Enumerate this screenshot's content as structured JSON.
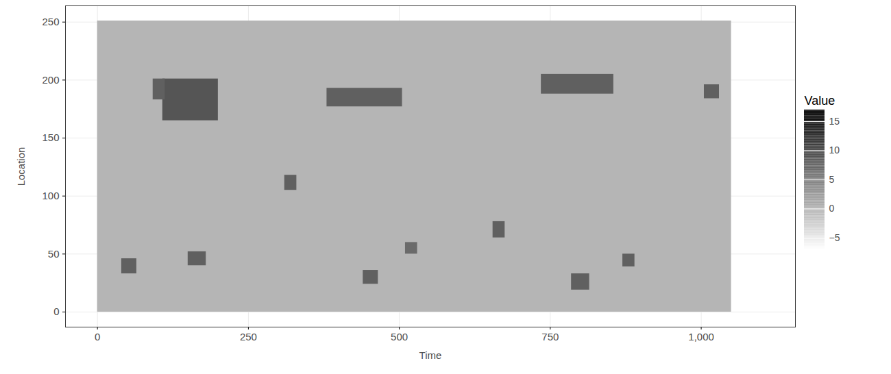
{
  "chart_data": {
    "type": "heatmap",
    "x_label": "Time",
    "y_label": "Location",
    "xlim": [
      -53,
      1156
    ],
    "ylim": [
      -13,
      264
    ],
    "xticks": [
      0,
      250,
      500,
      750,
      1000
    ],
    "yticks": [
      0,
      50,
      100,
      150,
      200,
      250
    ],
    "grid": true,
    "legend": "right",
    "background": {
      "x": [
        0,
        1050
      ],
      "y": [
        0,
        251
      ],
      "value": 0
    },
    "cells": [
      {
        "x1": 108,
        "x2": 200,
        "y1": 165,
        "y2": 201,
        "value": 9
      },
      {
        "x1": 92,
        "x2": 112,
        "y1": 183,
        "y2": 201,
        "value": 8
      },
      {
        "x1": 380,
        "x2": 505,
        "y1": 177,
        "y2": 193,
        "value": 8
      },
      {
        "x1": 735,
        "x2": 855,
        "y1": 188,
        "y2": 205,
        "value": 8
      },
      {
        "x1": 1005,
        "x2": 1030,
        "y1": 184,
        "y2": 196,
        "value": 8
      },
      {
        "x1": 310,
        "x2": 330,
        "y1": 105,
        "y2": 118,
        "value": 8
      },
      {
        "x1": 40,
        "x2": 65,
        "y1": 33,
        "y2": 46,
        "value": 8
      },
      {
        "x1": 150,
        "x2": 180,
        "y1": 40,
        "y2": 52,
        "value": 8
      },
      {
        "x1": 440,
        "x2": 465,
        "y1": 24,
        "y2": 36,
        "value": 8
      },
      {
        "x1": 510,
        "x2": 530,
        "y1": 50,
        "y2": 60,
        "value": 7
      },
      {
        "x1": 655,
        "x2": 675,
        "y1": 64,
        "y2": 78,
        "value": 8
      },
      {
        "x1": 785,
        "x2": 815,
        "y1": 19,
        "y2": 33,
        "value": 8
      },
      {
        "x1": 870,
        "x2": 890,
        "y1": 39,
        "y2": 50,
        "value": 8
      }
    ],
    "colorbar": {
      "label": "Value",
      "range": [
        -7,
        17
      ],
      "ticks": [
        -5,
        0,
        5,
        10,
        15
      ]
    }
  }
}
